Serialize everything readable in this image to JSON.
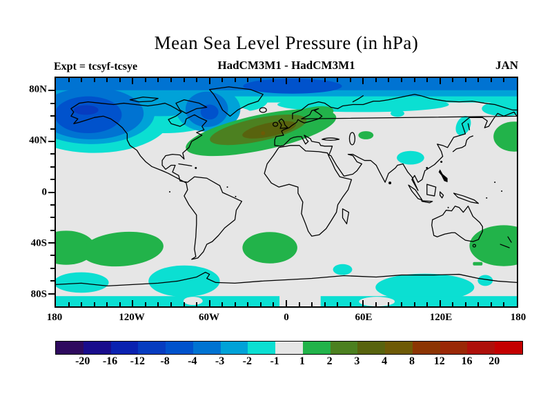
{
  "page": {
    "background": "#FFFFFF",
    "map_background": "#E6E6E6"
  },
  "chart_data": {
    "type": "filled-contour-map",
    "title": "Mean Sea Level Pressure (in hPa)",
    "subtitle": "HadCM3M1 - HadCM3M1",
    "experiment_label": "Expt = tcsyf-tcsye",
    "month_label": "JAN",
    "units": "hPa",
    "projection": "equirectangular",
    "grid": "off",
    "x_axis": {
      "range_deg": [
        -180,
        180
      ],
      "tick_interval_deg": 10,
      "labels": [
        {
          "text": "180",
          "lon": -180
        },
        {
          "text": "120W",
          "lon": -120
        },
        {
          "text": "60W",
          "lon": -60
        },
        {
          "text": "0",
          "lon": 0
        },
        {
          "text": "60E",
          "lon": 60
        },
        {
          "text": "120E",
          "lon": 120
        },
        {
          "text": "180",
          "lon": 180
        }
      ]
    },
    "y_axis": {
      "range_deg": [
        -90,
        90
      ],
      "tick_interval_deg": 10,
      "labels": [
        {
          "text": "80N",
          "lat": 80
        },
        {
          "text": "40N",
          "lat": 40
        },
        {
          "text": "0",
          "lat": 0
        },
        {
          "text": "40S",
          "lat": -40
        },
        {
          "text": "80S",
          "lat": -80
        }
      ]
    },
    "colorbar": {
      "levels": [
        -20,
        -16,
        -12,
        -8,
        -4,
        -3,
        -2,
        -1,
        1,
        2,
        3,
        4,
        8,
        12,
        16,
        20
      ],
      "colors": [
        "#2E0A5E",
        "#190D8C",
        "#0A22B0",
        "#063CC0",
        "#0052CC",
        "#0073D2",
        "#00A2D8",
        "#0BDFD2",
        "#E6E6E6",
        "#22B34A",
        "#4C8020",
        "#58630E",
        "#6E5A06",
        "#8C3503",
        "#9A2806",
        "#AE100A",
        "#C40000"
      ]
    },
    "anomaly_regions": [
      {
        "name": "arctic-band-low",
        "level_range": "-4 to -2",
        "location": "Arctic Ocean band, all longitudes north of ~75N"
      },
      {
        "name": "svalbard-low-patch",
        "level_range": "-8 to -4",
        "location": "north of Greenland toward Svalbard"
      },
      {
        "name": "alaska-bering-low",
        "level_range": "-12 to -1",
        "location": "Bering Sea / Alaska / Gulf of Alaska, center ~155W 60N"
      },
      {
        "name": "canada-low",
        "level_range": "-2 to -1",
        "location": "northern Canada and Arctic archipelago"
      },
      {
        "name": "baffin-low",
        "level_range": "-8 to -2",
        "location": "Baffin Bay / Davis Strait, center ~62W 65N"
      },
      {
        "name": "north-atlantic-europe-high",
        "level_range": "+1 to +8",
        "location": "mid North Atlantic across UK to Scandinavia, center ~20W 50N"
      },
      {
        "name": "kazakhstan-high",
        "level_range": "+1 to +2",
        "location": "~62E 45N"
      },
      {
        "name": "northwest-pacific-high",
        "level_range": "+1 to +2",
        "location": "~172E 44N"
      },
      {
        "name": "central-siberia-spot-low",
        "level_range": "-2 to -1",
        "location": "~87E 62N"
      },
      {
        "name": "tibet-china-low",
        "level_range": "-2 to -1",
        "location": "~96E 28N"
      },
      {
        "name": "sea-of-okhotsk-low",
        "level_range": "-2 to -1",
        "location": "~139E 52N"
      },
      {
        "name": "south-pacific-west-high",
        "level_range": "+1 to +2",
        "location": "~170W 44S"
      },
      {
        "name": "south-pacific-high",
        "level_range": "+1 to +2",
        "location": "~128W 45S"
      },
      {
        "name": "south-atlantic-high",
        "level_range": "+1 to +2",
        "location": "~13W 44S"
      },
      {
        "name": "new-zealand-high",
        "level_range": "+1 to +2",
        "location": "~170E 42S"
      },
      {
        "name": "southern-ocean-lows",
        "level_range": "-2 to -1",
        "location": "patches 60S-85S: Drake Passage, East Antarctica, circumpolar band near 85S"
      }
    ]
  }
}
